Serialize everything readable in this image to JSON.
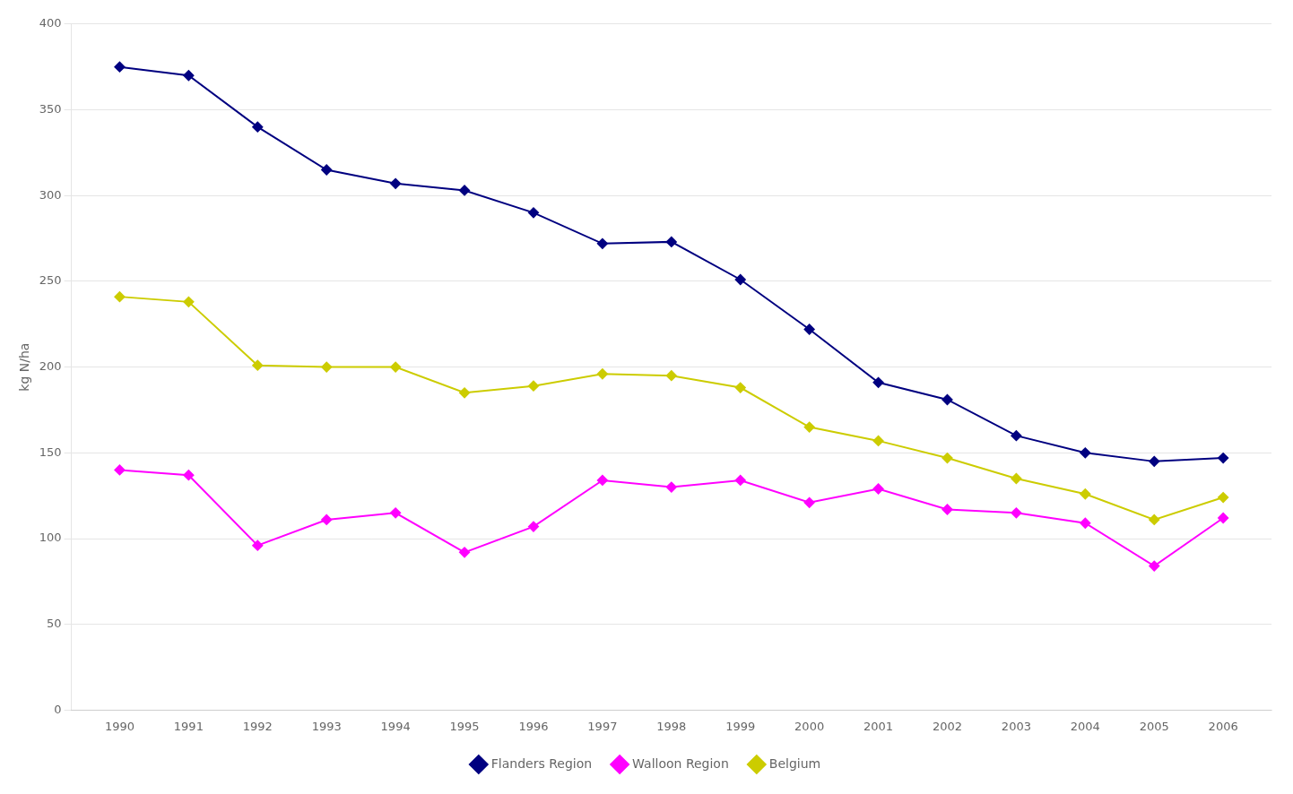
{
  "chart_data": {
    "type": "line",
    "x": [
      1990,
      1991,
      1992,
      1993,
      1994,
      1995,
      1996,
      1997,
      1998,
      1999,
      2000,
      2001,
      2002,
      2003,
      2004,
      2005,
      2006
    ],
    "series": [
      {
        "name": "Flanders Region",
        "color": "#000080",
        "marker": "diamond",
        "values": [
          375,
          370,
          340,
          315,
          307,
          303,
          290,
          272,
          273,
          251,
          222,
          191,
          181,
          160,
          150,
          145,
          147
        ]
      },
      {
        "name": "Walloon Region",
        "color": "#FF00FF",
        "marker": "diamond",
        "values": [
          140,
          137,
          96,
          111,
          115,
          92,
          107,
          134,
          130,
          134,
          121,
          129,
          117,
          115,
          109,
          84,
          112
        ]
      },
      {
        "name": "Belgium",
        "color": "#CCCC00",
        "marker": "diamond",
        "values": [
          241,
          238,
          201,
          200,
          200,
          185,
          189,
          196,
          195,
          188,
          165,
          157,
          147,
          135,
          126,
          111,
          124
        ]
      }
    ],
    "y_label": "kg N/ha",
    "xlim": [
      1989.3,
      2006.7
    ],
    "xticks": [
      1990,
      1991,
      1992,
      1993,
      1994,
      1995,
      1996,
      1997,
      1998,
      1999,
      2000,
      2001,
      2002,
      2003,
      2004,
      2005,
      2006
    ],
    "ylim": [
      0,
      400
    ],
    "yticks": [
      0,
      50,
      100,
      150,
      200,
      250,
      300,
      350,
      400
    ],
    "grid": "y",
    "legend": "bottom"
  }
}
